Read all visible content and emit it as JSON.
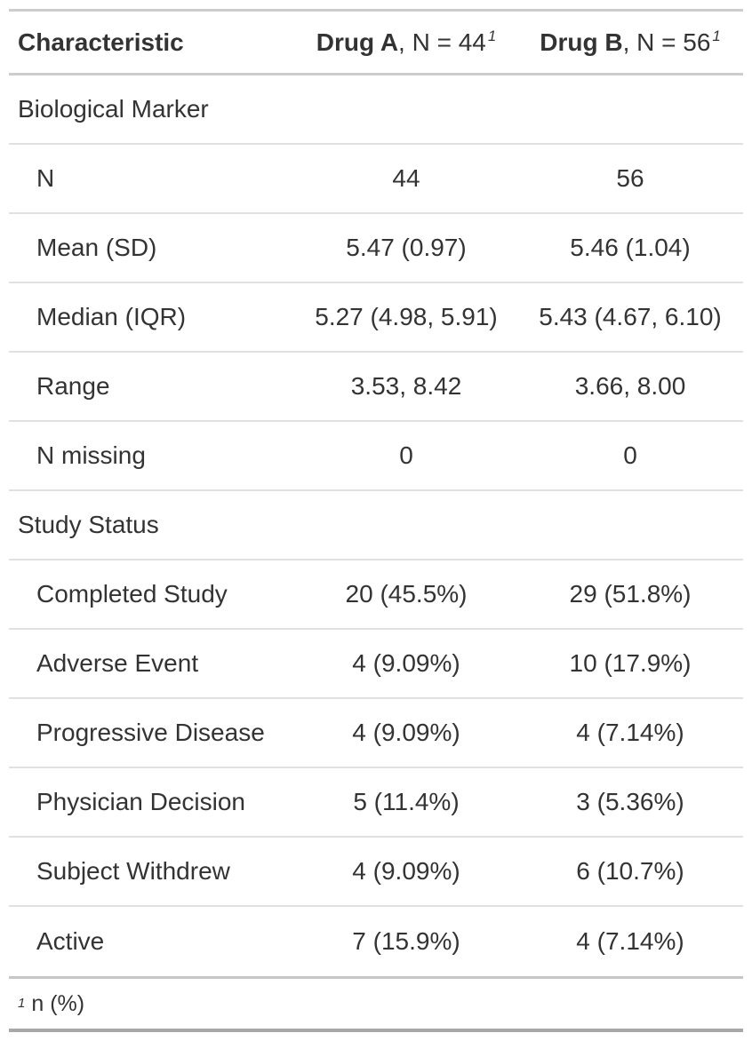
{
  "colors": {
    "text": "#333333",
    "border_light": "#E1E1E1",
    "border_medium": "#CDCDCD",
    "border_dark": "#A8A8A8",
    "background": "#FFFFFF"
  },
  "table": {
    "columns": {
      "characteristic": "Characteristic",
      "drug_a": {
        "name": "Drug A",
        "n_label": ", N = 44",
        "footnote_mark": "1"
      },
      "drug_b": {
        "name": "Drug B",
        "n_label": ", N = 56",
        "footnote_mark": "1"
      }
    },
    "rows": [
      {
        "label": "Biological Marker",
        "type": "group",
        "drug_a": "",
        "drug_b": ""
      },
      {
        "label": "N",
        "type": "level",
        "drug_a": "44",
        "drug_b": "56"
      },
      {
        "label": "Mean (SD)",
        "type": "level",
        "drug_a": "5.47 (0.97)",
        "drug_b": "5.46 (1.04)"
      },
      {
        "label": "Median (IQR)",
        "type": "level",
        "drug_a": "5.27 (4.98, 5.91)",
        "drug_b": "5.43 (4.67, 6.10)"
      },
      {
        "label": "Range",
        "type": "level",
        "drug_a": "3.53, 8.42",
        "drug_b": "3.66, 8.00"
      },
      {
        "label": "N missing",
        "type": "level",
        "drug_a": "0",
        "drug_b": "0"
      },
      {
        "label": "Study Status",
        "type": "group",
        "drug_a": "",
        "drug_b": ""
      },
      {
        "label": "Completed Study",
        "type": "level",
        "drug_a": "20 (45.5%)",
        "drug_b": "29 (51.8%)"
      },
      {
        "label": "Adverse Event",
        "type": "level",
        "drug_a": "4 (9.09%)",
        "drug_b": "10 (17.9%)"
      },
      {
        "label": "Progressive Disease",
        "type": "level",
        "drug_a": "4 (9.09%)",
        "drug_b": "4 (7.14%)"
      },
      {
        "label": "Physician Decision",
        "type": "level",
        "drug_a": "5 (11.4%)",
        "drug_b": "3 (5.36%)"
      },
      {
        "label": "Subject Withdrew",
        "type": "level",
        "drug_a": "4 (9.09%)",
        "drug_b": "6 (10.7%)"
      },
      {
        "label": "Active",
        "type": "level",
        "drug_a": "7 (15.9%)",
        "drug_b": "4 (7.14%)"
      }
    ],
    "footnote": {
      "mark": "1",
      "text": "n (%)"
    }
  },
  "chart_data": {
    "type": "table",
    "columns": [
      "Characteristic",
      "Drug A, N = 44",
      "Drug B, N = 56"
    ],
    "rows": [
      [
        "Biological Marker",
        "",
        ""
      ],
      [
        "N",
        "44",
        "56"
      ],
      [
        "Mean (SD)",
        "5.47 (0.97)",
        "5.46 (1.04)"
      ],
      [
        "Median (IQR)",
        "5.27 (4.98, 5.91)",
        "5.43 (4.67, 6.10)"
      ],
      [
        "Range",
        "3.53, 8.42",
        "3.66, 8.00"
      ],
      [
        "N missing",
        "0",
        "0"
      ],
      [
        "Study Status",
        "",
        ""
      ],
      [
        "Completed Study",
        "20 (45.5%)",
        "29 (51.8%)"
      ],
      [
        "Adverse Event",
        "4 (9.09%)",
        "10 (17.9%)"
      ],
      [
        "Progressive Disease",
        "4 (9.09%)",
        "4 (7.14%)"
      ],
      [
        "Physician Decision",
        "5 (11.4%)",
        "3 (5.36%)"
      ],
      [
        "Subject Withdrew",
        "4 (9.09%)",
        "6 (10.7%)"
      ],
      [
        "Active",
        "7 (15.9%)",
        "4 (7.14%)"
      ]
    ],
    "footnotes": [
      "1 n (%)"
    ]
  }
}
